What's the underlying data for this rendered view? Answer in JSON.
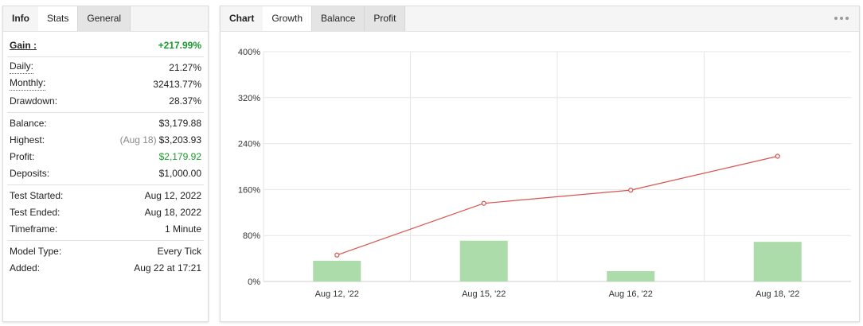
{
  "stats_panel": {
    "tabs": [
      "Info",
      "Stats",
      "General"
    ],
    "active_tab": 1,
    "groups": [
      [
        {
          "label": "Gain :",
          "value": "+217.99%",
          "style": "gain"
        }
      ],
      [
        {
          "label": "Daily:",
          "value": "21.27%",
          "style": "dotted"
        },
        {
          "label": "Monthly:",
          "value": "32413.77%",
          "style": "dotted"
        },
        {
          "label": "Drawdown:",
          "value": "28.37%"
        }
      ],
      [
        {
          "label": "Balance:",
          "value": "$3,179.88"
        },
        {
          "label": "Highest:",
          "note": "(Aug 18)",
          "value": "$3,203.93"
        },
        {
          "label": "Profit:",
          "value": "$2,179.92",
          "style": "positive"
        },
        {
          "label": "Deposits:",
          "value": "$1,000.00"
        }
      ],
      [
        {
          "label": "Test Started:",
          "value": "Aug 12, 2022"
        },
        {
          "label": "Test Ended:",
          "value": "Aug 18, 2022"
        },
        {
          "label": "Timeframe:",
          "value": "1 Minute"
        }
      ],
      [
        {
          "label": "Model Type:",
          "value": "Every Tick"
        },
        {
          "label": "Added:",
          "value": "Aug 22 at 17:21"
        }
      ]
    ]
  },
  "chart_tabs": {
    "title": "Chart",
    "tabs": [
      "Growth",
      "Balance",
      "Profit"
    ],
    "active_tab": 0
  },
  "chart_data": {
    "type": "bar",
    "categories": [
      "Aug 12, '22",
      "Aug 15, '22",
      "Aug 16, '22",
      "Aug 18, '22"
    ],
    "series": [
      {
        "type": "bar",
        "color": "#addcab",
        "values": [
          36,
          71,
          18,
          69
        ]
      },
      {
        "type": "line",
        "color": "#d9534f",
        "values": [
          46,
          136,
          159,
          217.99
        ]
      }
    ],
    "ylim": [
      0,
      400
    ],
    "yticks": [
      {
        "value": 0,
        "label": "0%"
      },
      {
        "value": 80,
        "label": "80%"
      },
      {
        "value": 160,
        "label": "160%"
      },
      {
        "value": 240,
        "label": "240%"
      },
      {
        "value": 320,
        "label": "320%"
      },
      {
        "value": 400,
        "label": "400%"
      }
    ],
    "grid": true
  }
}
